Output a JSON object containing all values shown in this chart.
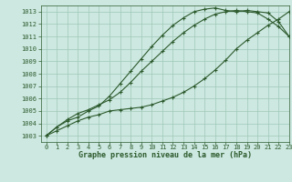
{
  "title": "Graphe pression niveau de la mer (hPa)",
  "background_color": "#cce8e0",
  "grid_color": "#a0c8b8",
  "line_color": "#2d5a2d",
  "xlim": [
    -0.5,
    23
  ],
  "ylim": [
    1002.5,
    1013.5
  ],
  "xticks": [
    0,
    1,
    2,
    3,
    4,
    5,
    6,
    7,
    8,
    9,
    10,
    11,
    12,
    13,
    14,
    15,
    16,
    17,
    18,
    19,
    20,
    21,
    22,
    23
  ],
  "yticks": [
    1003,
    1004,
    1005,
    1006,
    1007,
    1008,
    1009,
    1010,
    1011,
    1012,
    1013
  ],
  "series1_x": [
    0,
    1,
    2,
    3,
    4,
    5,
    6,
    7,
    8,
    9,
    10,
    11,
    12,
    13,
    14,
    15,
    16,
    17,
    18,
    19,
    20,
    21,
    22,
    23
  ],
  "series1_y": [
    1003.0,
    1003.7,
    1004.2,
    1004.5,
    1005.0,
    1005.4,
    1006.2,
    1007.2,
    1008.2,
    1009.2,
    1010.2,
    1011.1,
    1011.9,
    1012.5,
    1013.0,
    1013.2,
    1013.3,
    1013.1,
    1013.0,
    1013.1,
    1013.0,
    1012.9,
    1012.2,
    1011.0
  ],
  "series2_x": [
    0,
    1,
    2,
    3,
    4,
    5,
    6,
    7,
    8,
    9,
    10,
    11,
    12,
    13,
    14,
    15,
    16,
    17,
    18,
    19,
    20,
    21,
    22,
    23
  ],
  "series2_y": [
    1003.0,
    1003.7,
    1004.3,
    1004.8,
    1005.1,
    1005.5,
    1005.9,
    1006.5,
    1007.3,
    1008.2,
    1009.0,
    1009.8,
    1010.6,
    1011.3,
    1011.9,
    1012.4,
    1012.8,
    1013.0,
    1013.1,
    1013.0,
    1012.9,
    1012.4,
    1011.8,
    1011.0
  ],
  "series3_x": [
    0,
    1,
    2,
    3,
    4,
    5,
    6,
    7,
    8,
    9,
    10,
    11,
    12,
    13,
    14,
    15,
    16,
    17,
    18,
    19,
    20,
    21,
    22,
    23
  ],
  "series3_y": [
    1003.0,
    1003.4,
    1003.8,
    1004.2,
    1004.5,
    1004.7,
    1005.0,
    1005.1,
    1005.2,
    1005.3,
    1005.5,
    1005.8,
    1006.1,
    1006.5,
    1007.0,
    1007.6,
    1008.3,
    1009.1,
    1010.0,
    1010.7,
    1011.3,
    1011.9,
    1012.4,
    1013.0
  ],
  "tick_fontsize": 5,
  "xlabel_fontsize": 6
}
